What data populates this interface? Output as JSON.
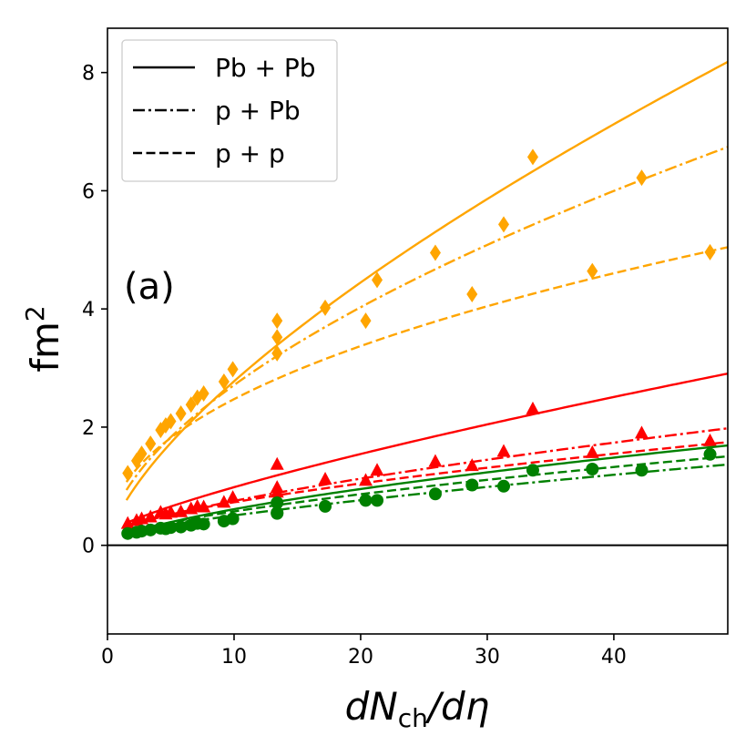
{
  "chart_data": {
    "type": "line",
    "panel_label": "(a)",
    "xlabel_main": "dN",
    "xlabel_sub": "ch",
    "xlabel_tail": "/dη",
    "ylabel_main": "fm",
    "ylabel_sup": "2",
    "xlim": [
      0,
      49
    ],
    "ylim": [
      -1.5,
      8.75
    ],
    "xticks": [
      0,
      10,
      20,
      30,
      40
    ],
    "yticks": [
      0,
      2,
      4,
      6,
      8
    ],
    "grid": false,
    "legend_position": "top-left",
    "legend": [
      {
        "label": "Pb + Pb",
        "style": "solid"
      },
      {
        "label": "p + Pb",
        "style": "dashdot"
      },
      {
        "label": "p + p",
        "style": "dashed"
      }
    ],
    "colors": {
      "orange": "#ffa500",
      "red": "#ff0000",
      "green": "#008000",
      "zero_line": "#000000"
    },
    "series": [
      {
        "name": "Pb+Pb orange",
        "color": "#ffa500",
        "style": "solid",
        "marker": "diamond",
        "curve": {
          "a": 0.58,
          "b": 0.0,
          "p": 0.68
        },
        "points": [
          [
            13.4,
            3.8
          ],
          [
            33.6,
            6.57
          ]
        ]
      },
      {
        "name": "p+Pb orange",
        "color": "#ffa500",
        "style": "dashdot",
        "marker": "diamond",
        "curve": {
          "a": 0.7,
          "b": 0.05,
          "p": 0.58
        },
        "points": [
          [
            13.4,
            3.52
          ],
          [
            25.9,
            4.95
          ],
          [
            31.3,
            5.43
          ],
          [
            42.2,
            6.22
          ]
        ]
      },
      {
        "name": "p+p orange",
        "color": "#ffa500",
        "style": "dashed",
        "marker": "diamond",
        "curve": {
          "a": 0.85,
          "b": 0.05,
          "p": 0.455
        },
        "points": [
          [
            1.6,
            1.22
          ],
          [
            2.3,
            1.43
          ],
          [
            2.7,
            1.55
          ],
          [
            3.4,
            1.72
          ],
          [
            4.2,
            1.95
          ],
          [
            4.6,
            2.03
          ],
          [
            5.0,
            2.1
          ],
          [
            5.8,
            2.23
          ],
          [
            6.6,
            2.38
          ],
          [
            7.1,
            2.5
          ],
          [
            7.6,
            2.57
          ],
          [
            9.2,
            2.77
          ],
          [
            9.9,
            2.98
          ],
          [
            13.4,
            3.25
          ],
          [
            17.2,
            4.02
          ],
          [
            20.4,
            3.8
          ],
          [
            21.3,
            4.49
          ],
          [
            28.8,
            4.25
          ],
          [
            38.3,
            4.64
          ],
          [
            47.6,
            4.96
          ]
        ]
      },
      {
        "name": "Pb+Pb red",
        "color": "#ff0000",
        "style": "solid",
        "marker": "triangle",
        "curve": {
          "a": 0.13,
          "b": 0.2,
          "p": 0.78
        },
        "points": [
          [
            13.4,
            1.37
          ],
          [
            33.6,
            2.31
          ]
        ]
      },
      {
        "name": "p+Pb red",
        "color": "#ff0000",
        "style": "dashdot",
        "marker": "triangle",
        "curve": {
          "a": 0.12,
          "b": 0.15,
          "p": 0.7
        },
        "points": [
          [
            13.4,
            0.98
          ],
          [
            25.9,
            1.42
          ],
          [
            31.3,
            1.59
          ],
          [
            42.2,
            1.9
          ]
        ]
      },
      {
        "name": "p+p red",
        "color": "#ff0000",
        "style": "dashed",
        "marker": "triangle",
        "curve": {
          "a": 0.12,
          "b": 0.18,
          "p": 0.66
        },
        "points": [
          [
            1.6,
            0.37
          ],
          [
            2.3,
            0.42
          ],
          [
            2.7,
            0.45
          ],
          [
            3.4,
            0.48
          ],
          [
            4.2,
            0.56
          ],
          [
            4.6,
            0.53
          ],
          [
            5.0,
            0.56
          ],
          [
            5.8,
            0.57
          ],
          [
            6.6,
            0.62
          ],
          [
            7.1,
            0.66
          ],
          [
            7.6,
            0.65
          ],
          [
            9.2,
            0.73
          ],
          [
            9.9,
            0.81
          ],
          [
            13.4,
            0.9
          ],
          [
            17.2,
            1.12
          ],
          [
            20.4,
            1.1
          ],
          [
            21.3,
            1.27
          ],
          [
            28.8,
            1.35
          ],
          [
            38.3,
            1.57
          ],
          [
            47.6,
            1.77
          ]
        ]
      },
      {
        "name": "Pb+Pb green",
        "color": "#008000",
        "style": "solid",
        "marker": "circle",
        "curve": {
          "a": 0.14,
          "b": 0.0,
          "p": 0.64
        },
        "points": [
          [
            13.4,
            0.72
          ],
          [
            33.6,
            1.27
          ]
        ]
      },
      {
        "name": "p+Pb green",
        "color": "#008000",
        "style": "dashdot",
        "marker": "circle",
        "curve": {
          "a": 0.07,
          "b": 0.12,
          "p": 0.74
        },
        "points": [
          [
            13.4,
            0.55
          ],
          [
            25.9,
            0.87
          ],
          [
            31.3,
            1.0
          ],
          [
            42.2,
            1.27
          ]
        ]
      },
      {
        "name": "p+p green",
        "color": "#008000",
        "style": "dashed",
        "marker": "circle",
        "curve": {
          "a": 0.11,
          "b": 0.07,
          "p": 0.66
        },
        "points": [
          [
            1.6,
            0.2
          ],
          [
            2.3,
            0.22
          ],
          [
            2.7,
            0.24
          ],
          [
            3.4,
            0.26
          ],
          [
            4.2,
            0.29
          ],
          [
            4.6,
            0.28
          ],
          [
            5.0,
            0.3
          ],
          [
            5.8,
            0.31
          ],
          [
            6.6,
            0.34
          ],
          [
            7.1,
            0.37
          ],
          [
            7.6,
            0.36
          ],
          [
            9.2,
            0.41
          ],
          [
            9.9,
            0.45
          ],
          [
            13.4,
            0.54
          ],
          [
            17.2,
            0.66
          ],
          [
            20.4,
            0.76
          ],
          [
            21.3,
            0.76
          ],
          [
            28.8,
            1.02
          ],
          [
            38.3,
            1.29
          ],
          [
            47.6,
            1.54
          ]
        ]
      }
    ]
  }
}
